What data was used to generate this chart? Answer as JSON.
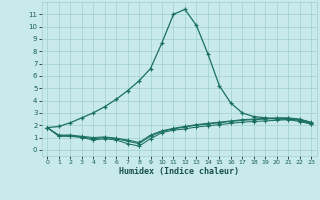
{
  "xlabel": "Humidex (Indice chaleur)",
  "bg_color": "#c8eaea",
  "grid_color": "#9fcfcf",
  "line_color": "#1a7060",
  "xlim": [
    -0.5,
    23.5
  ],
  "ylim": [
    -0.5,
    12.0
  ],
  "yticks": [
    0,
    1,
    2,
    3,
    4,
    5,
    6,
    7,
    8,
    9,
    10,
    11
  ],
  "xticks": [
    0,
    1,
    2,
    3,
    4,
    5,
    6,
    7,
    8,
    9,
    10,
    11,
    12,
    13,
    14,
    15,
    16,
    17,
    18,
    19,
    20,
    21,
    22,
    23
  ],
  "curve1_x": [
    0,
    1,
    2,
    3,
    4,
    5,
    6,
    7,
    8,
    9,
    10,
    11,
    12,
    13,
    14,
    15,
    16,
    17,
    18,
    19,
    20,
    21,
    22,
    23
  ],
  "curve1_y": [
    1.8,
    1.9,
    2.2,
    2.6,
    3.0,
    3.5,
    4.1,
    4.8,
    5.6,
    6.6,
    8.7,
    11.0,
    11.4,
    10.1,
    7.8,
    5.2,
    3.8,
    3.0,
    2.7,
    2.6,
    2.5,
    2.5,
    2.4,
    2.1
  ],
  "curve2_x": [
    0,
    1,
    2,
    3,
    4,
    5,
    6,
    7,
    8,
    9,
    10,
    11,
    12,
    13,
    14,
    15,
    16,
    17,
    18,
    19,
    20,
    21,
    22,
    23
  ],
  "curve2_y": [
    1.8,
    1.1,
    1.1,
    1.0,
    0.8,
    0.9,
    0.8,
    0.5,
    0.3,
    0.9,
    1.4,
    1.6,
    1.7,
    1.85,
    1.95,
    2.05,
    2.15,
    2.25,
    2.3,
    2.35,
    2.4,
    2.45,
    2.3,
    2.1
  ],
  "curve3_x": [
    0,
    1,
    2,
    3,
    4,
    5,
    6,
    7,
    8,
    9,
    10,
    11,
    12,
    13,
    14,
    15,
    16,
    17,
    18,
    19,
    20,
    21,
    22,
    23
  ],
  "curve3_y": [
    1.8,
    1.15,
    1.15,
    1.05,
    0.9,
    1.0,
    0.9,
    0.7,
    0.5,
    1.1,
    1.5,
    1.7,
    1.85,
    2.0,
    2.1,
    2.2,
    2.3,
    2.4,
    2.45,
    2.5,
    2.55,
    2.55,
    2.45,
    2.2
  ],
  "curve4_x": [
    0,
    1,
    2,
    3,
    4,
    5,
    6,
    7,
    8,
    9,
    10,
    11,
    12,
    13,
    14,
    15,
    16,
    17,
    18,
    19,
    20,
    21,
    22,
    23
  ],
  "curve4_y": [
    1.8,
    1.2,
    1.2,
    1.1,
    1.0,
    1.05,
    0.95,
    0.8,
    0.6,
    1.2,
    1.55,
    1.75,
    1.9,
    2.05,
    2.15,
    2.25,
    2.35,
    2.45,
    2.5,
    2.55,
    2.6,
    2.6,
    2.5,
    2.25
  ]
}
